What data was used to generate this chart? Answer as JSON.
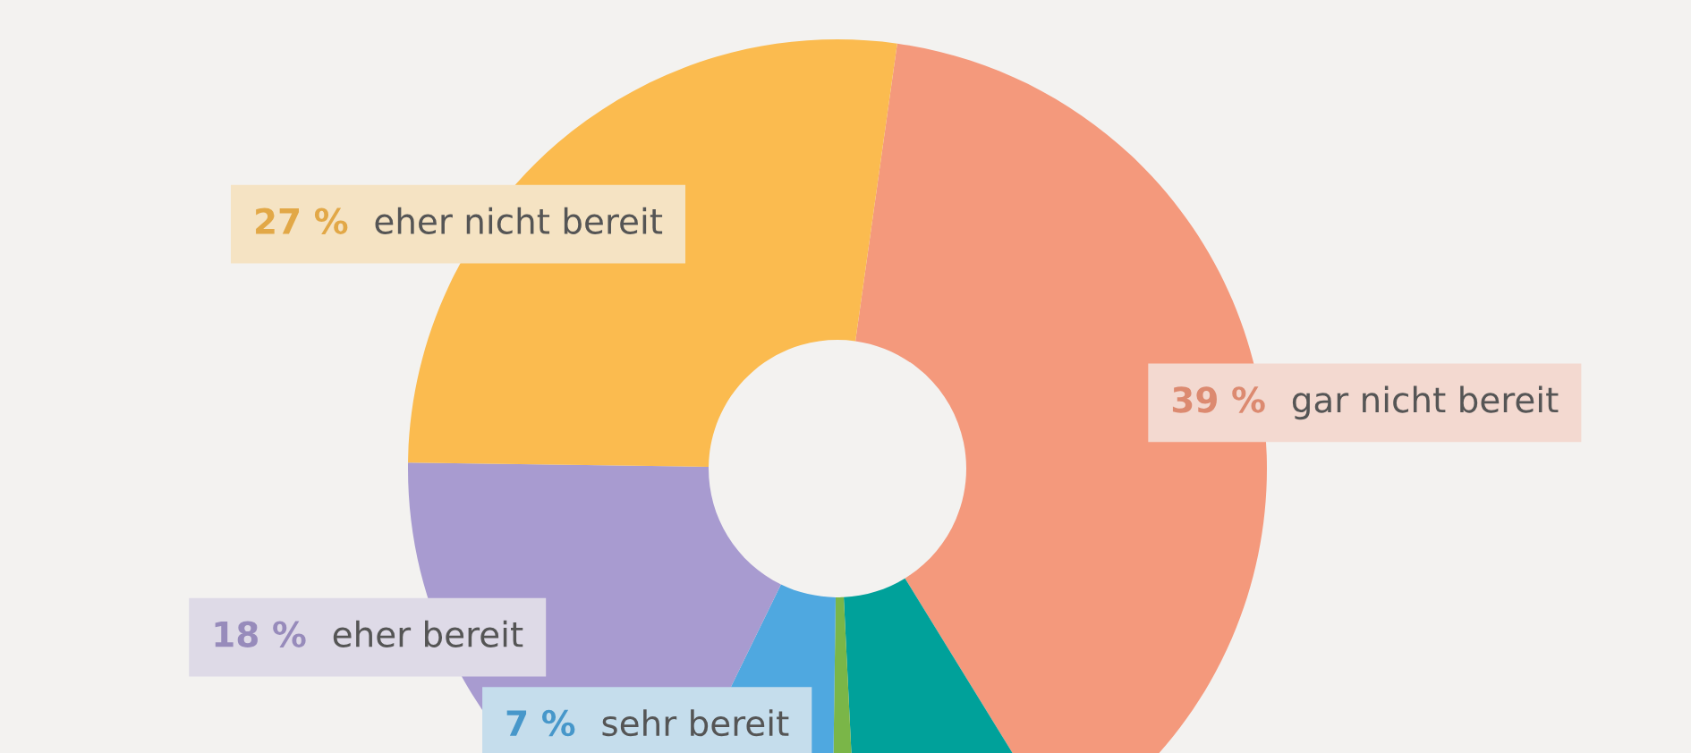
{
  "chart_data": {
    "type": "donut",
    "categories": [
      "gar nicht bereit",
      null,
      null,
      "sehr bereit",
      "eher bereit",
      "eher nicht bereit"
    ],
    "values": [
      39,
      8,
      1,
      7,
      18,
      27
    ],
    "value_labels": [
      "39 %",
      null,
      null,
      "7 %",
      "18 %",
      "27 %"
    ],
    "colors": [
      "#f4997c",
      "#00a19a",
      "#7ab648",
      "#4fa8e0",
      "#a89bd0",
      "#fbbb4f"
    ],
    "legend": false
  }
}
